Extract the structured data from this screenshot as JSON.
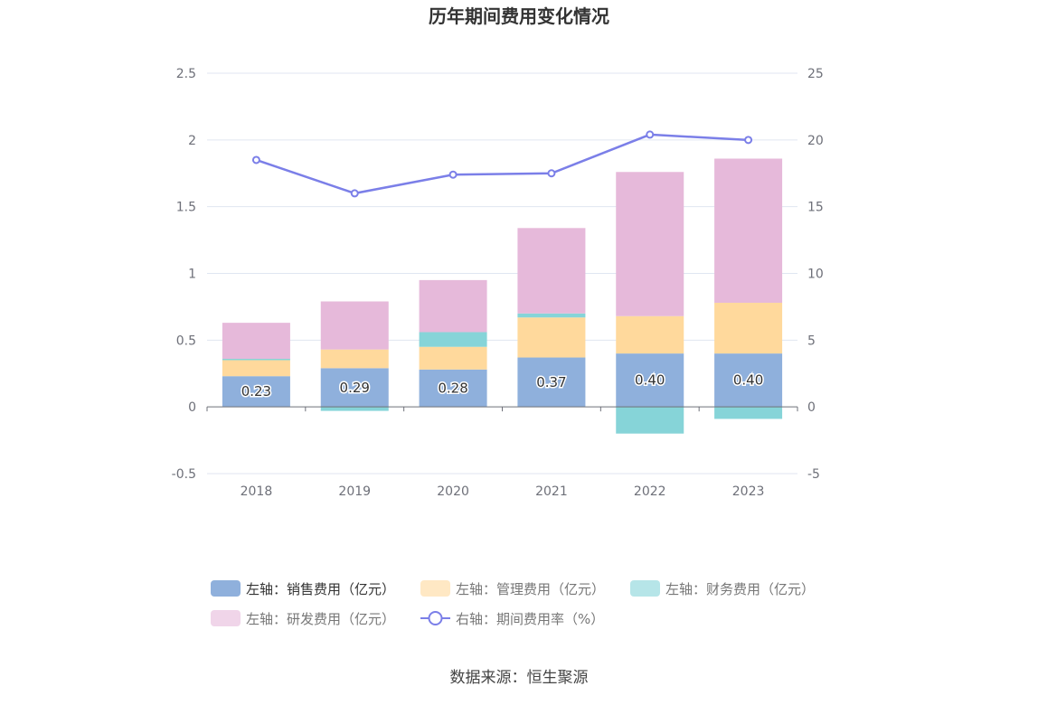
{
  "chart_data": {
    "type": "bar",
    "stacked": true,
    "title": "历年期间费用变化情况",
    "source": "数据来源：恒生聚源",
    "categories": [
      "2018",
      "2019",
      "2020",
      "2021",
      "2022",
      "2023"
    ],
    "left_axis": {
      "min": -0.5,
      "max": 2.5,
      "ticks": [
        "2.5",
        "2",
        "1.5",
        "1",
        "0.5",
        "0",
        "-0.5"
      ]
    },
    "right_axis": {
      "min": -5,
      "max": 25,
      "ticks": [
        "25",
        "20",
        "15",
        "10",
        "5",
        "0",
        "-5"
      ]
    },
    "grid": true,
    "legend_position": "bottom",
    "series": [
      {
        "name": "左轴：销售费用（亿元）",
        "type": "bar",
        "axis": "left",
        "color": "#8fb0dc",
        "values": [
          0.23,
          0.29,
          0.28,
          0.37,
          0.4,
          0.4
        ],
        "labels": [
          "0.23",
          "0.29",
          "0.28",
          "0.37",
          "0.40",
          "0.40"
        ]
      },
      {
        "name": "左轴：管理费用（亿元）",
        "type": "bar",
        "axis": "left",
        "color": "#ffd99c",
        "values": [
          0.12,
          0.14,
          0.17,
          0.3,
          0.28,
          0.38
        ]
      },
      {
        "name": "左轴：财务费用（亿元）",
        "type": "bar",
        "axis": "left",
        "color": "#86d4d8",
        "values": [
          0.01,
          -0.03,
          0.11,
          0.03,
          -0.2,
          -0.09
        ]
      },
      {
        "name": "左轴：研发费用（亿元）",
        "type": "bar",
        "axis": "left",
        "color": "#e6b9da",
        "values": [
          0.27,
          0.36,
          0.39,
          0.64,
          1.08,
          1.08
        ]
      },
      {
        "name": "右轴：期间费用率（%）",
        "type": "line",
        "axis": "right",
        "color": "#7b7fe8",
        "values": [
          18.5,
          16.0,
          17.4,
          17.5,
          20.4,
          20.0
        ]
      }
    ]
  }
}
